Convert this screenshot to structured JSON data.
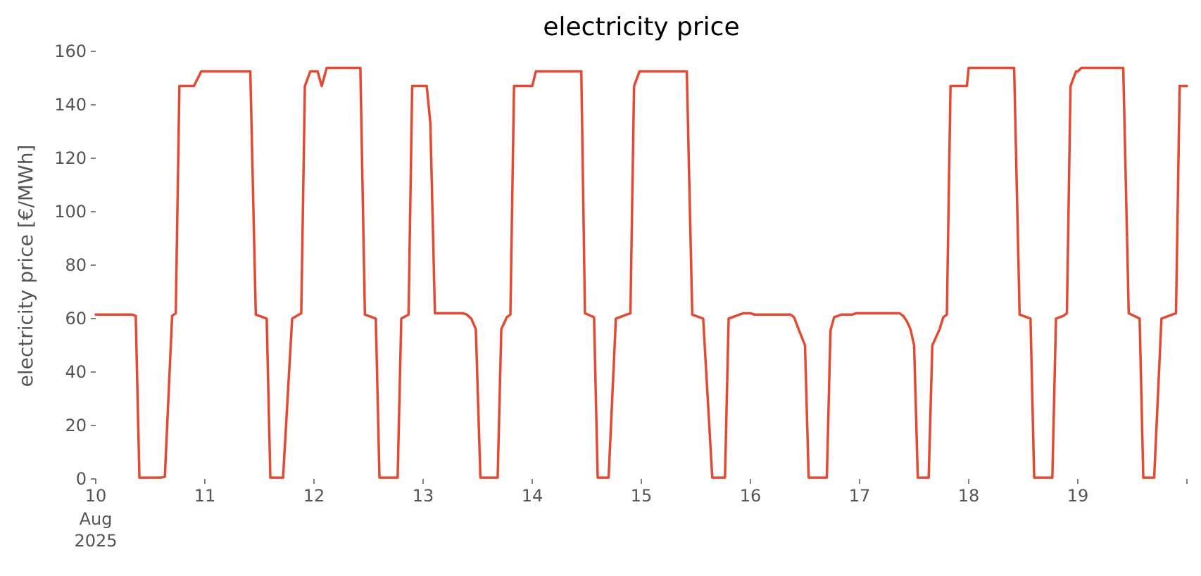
{
  "chart_data": {
    "type": "line",
    "title": "electricity price",
    "xlabel": "",
    "ylabel": "electricity price [€/MWh]",
    "xlim": [
      "2025-08-10",
      "2025-08-20"
    ],
    "ylim": [
      0,
      160
    ],
    "grid": false,
    "color": "#E24A33",
    "x_ticks": [
      {
        "value": "2025-08-10",
        "label": "10",
        "sublabel": [
          "Aug",
          "2025"
        ]
      },
      {
        "value": "2025-08-11",
        "label": "11"
      },
      {
        "value": "2025-08-12",
        "label": "12"
      },
      {
        "value": "2025-08-13",
        "label": "13"
      },
      {
        "value": "2025-08-14",
        "label": "14"
      },
      {
        "value": "2025-08-15",
        "label": "15"
      },
      {
        "value": "2025-08-16",
        "label": "16"
      },
      {
        "value": "2025-08-17",
        "label": "17"
      },
      {
        "value": "2025-08-18",
        "label": "18"
      },
      {
        "value": "2025-08-19",
        "label": "19"
      },
      {
        "value": "2025-08-20",
        "label": ""
      }
    ],
    "y_ticks": [
      0,
      20,
      40,
      60,
      80,
      100,
      120,
      140,
      160
    ],
    "series": [
      {
        "name": "",
        "points": [
          [
            "2025-08-10 00:00",
            61.5
          ],
          [
            "2025-08-10 08:00",
            61.5
          ],
          [
            "2025-08-10 08:48",
            61.0
          ],
          [
            "2025-08-10 09:36",
            0.5
          ],
          [
            "2025-08-10 14:24",
            0.5
          ],
          [
            "2025-08-10 15:12",
            0.8
          ],
          [
            "2025-08-10 16:48",
            61.0
          ],
          [
            "2025-08-10 17:36",
            62.0
          ],
          [
            "2025-08-10 18:24",
            147.0
          ],
          [
            "2025-08-10 21:36",
            147.0
          ],
          [
            "2025-08-10 23:12",
            152.5
          ],
          [
            "2025-08-11 10:00",
            152.5
          ],
          [
            "2025-08-11 11:12",
            61.5
          ],
          [
            "2025-08-11 13:36",
            60.0
          ],
          [
            "2025-08-11 14:24",
            0.5
          ],
          [
            "2025-08-11 15:36",
            0.5
          ],
          [
            "2025-08-11 17:12",
            0.5
          ],
          [
            "2025-08-11 19:12",
            60.0
          ],
          [
            "2025-08-11 21:12",
            62.0
          ],
          [
            "2025-08-11 22:00",
            147.0
          ],
          [
            "2025-08-11 23:12",
            152.5
          ],
          [
            "2025-08-11 23:48",
            152.5
          ],
          [
            "2025-08-12 00:48",
            152.5
          ],
          [
            "2025-08-12 01:42",
            147.0
          ],
          [
            "2025-08-12 02:48",
            153.8
          ],
          [
            "2025-08-12 10:12",
            153.8
          ],
          [
            "2025-08-12 11:12",
            61.5
          ],
          [
            "2025-08-12 13:36",
            60.0
          ],
          [
            "2025-08-12 14:24",
            0.5
          ],
          [
            "2025-08-12 18:24",
            0.5
          ],
          [
            "2025-08-12 19:12",
            60.0
          ],
          [
            "2025-08-12 20:48",
            61.5
          ],
          [
            "2025-08-12 21:36",
            147.0
          ],
          [
            "2025-08-13 00:48",
            147.0
          ],
          [
            "2025-08-13 01:36",
            133.0
          ],
          [
            "2025-08-13 02:36",
            62.0
          ],
          [
            "2025-08-13 08:48",
            62.0
          ],
          [
            "2025-08-13 09:36",
            61.5
          ],
          [
            "2025-08-13 10:36",
            60.0
          ],
          [
            "2025-08-13 11:36",
            56.0
          ],
          [
            "2025-08-13 12:36",
            0.5
          ],
          [
            "2025-08-13 16:24",
            0.5
          ],
          [
            "2025-08-13 17:12",
            56.0
          ],
          [
            "2025-08-13 18:24",
            60.5
          ],
          [
            "2025-08-13 19:12",
            61.5
          ],
          [
            "2025-08-13 20:00",
            147.0
          ],
          [
            "2025-08-13 23:48",
            147.0
          ],
          [
            "2025-08-14 00:00",
            147.0
          ],
          [
            "2025-08-14 00:48",
            152.5
          ],
          [
            "2025-08-14 10:48",
            152.5
          ],
          [
            "2025-08-14 11:36",
            62.0
          ],
          [
            "2025-08-14 13:36",
            60.5
          ],
          [
            "2025-08-14 14:24",
            0.5
          ],
          [
            "2025-08-14 16:48",
            0.5
          ],
          [
            "2025-08-14 18:24",
            60.0
          ],
          [
            "2025-08-14 20:00",
            61.0
          ],
          [
            "2025-08-14 21:36",
            62.0
          ],
          [
            "2025-08-14 22:24",
            147.0
          ],
          [
            "2025-08-14 23:36",
            152.5
          ],
          [
            "2025-08-15 10:00",
            152.5
          ],
          [
            "2025-08-15 11:12",
            61.5
          ],
          [
            "2025-08-15 13:36",
            60.0
          ],
          [
            "2025-08-15 15:36",
            0.5
          ],
          [
            "2025-08-15 18:24",
            0.5
          ],
          [
            "2025-08-15 19:12",
            60.0
          ],
          [
            "2025-08-15 20:48",
            61.0
          ],
          [
            "2025-08-15 22:24",
            62.0
          ],
          [
            "2025-08-16 00:00",
            62.0
          ],
          [
            "2025-08-16 00:48",
            61.5
          ],
          [
            "2025-08-16 08:48",
            61.5
          ],
          [
            "2025-08-16 09:36",
            60.5
          ],
          [
            "2025-08-16 10:36",
            56.0
          ],
          [
            "2025-08-16 12:00",
            50.0
          ],
          [
            "2025-08-16 12:48",
            0.5
          ],
          [
            "2025-08-16 15:12",
            0.5
          ],
          [
            "2025-08-16 16:48",
            0.5
          ],
          [
            "2025-08-16 17:36",
            55.5
          ],
          [
            "2025-08-16 18:24",
            60.5
          ],
          [
            "2025-08-16 20:00",
            61.5
          ],
          [
            "2025-08-16 22:24",
            61.5
          ],
          [
            "2025-08-16 23:12",
            62.0
          ],
          [
            "2025-08-17 08:48",
            62.0
          ],
          [
            "2025-08-17 09:36",
            61.0
          ],
          [
            "2025-08-17 10:24",
            59.0
          ],
          [
            "2025-08-17 11:12",
            56.0
          ],
          [
            "2025-08-17 12:00",
            50.0
          ],
          [
            "2025-08-17 12:48",
            0.5
          ],
          [
            "2025-08-17 15:12",
            0.5
          ],
          [
            "2025-08-17 16:00",
            50.0
          ],
          [
            "2025-08-17 17:36",
            56.0
          ],
          [
            "2025-08-17 18:24",
            60.5
          ],
          [
            "2025-08-17 19:12",
            61.5
          ],
          [
            "2025-08-17 20:00",
            147.0
          ],
          [
            "2025-08-17 23:36",
            147.0
          ],
          [
            "2025-08-18 00:00",
            153.8
          ],
          [
            "2025-08-18 10:00",
            153.8
          ],
          [
            "2025-08-18 11:12",
            61.5
          ],
          [
            "2025-08-18 13:36",
            60.0
          ],
          [
            "2025-08-18 14:24",
            0.5
          ],
          [
            "2025-08-18 18:24",
            0.5
          ],
          [
            "2025-08-18 19:12",
            60.0
          ],
          [
            "2025-08-18 20:48",
            61.0
          ],
          [
            "2025-08-18 21:36",
            62.0
          ],
          [
            "2025-08-18 22:24",
            147.0
          ],
          [
            "2025-08-18 23:36",
            152.5
          ],
          [
            "2025-08-19 00:00",
            152.5
          ],
          [
            "2025-08-19 00:48",
            153.8
          ],
          [
            "2025-08-19 10:00",
            153.8
          ],
          [
            "2025-08-19 11:12",
            62.0
          ],
          [
            "2025-08-19 13:36",
            60.0
          ],
          [
            "2025-08-19 14:24",
            0.5
          ],
          [
            "2025-08-19 16:48",
            0.5
          ],
          [
            "2025-08-19 18:24",
            60.0
          ],
          [
            "2025-08-19 20:00",
            61.0
          ],
          [
            "2025-08-19 21:36",
            62.0
          ],
          [
            "2025-08-19 22:24",
            147.0
          ],
          [
            "2025-08-19 23:59",
            147.0
          ]
        ]
      }
    ]
  }
}
